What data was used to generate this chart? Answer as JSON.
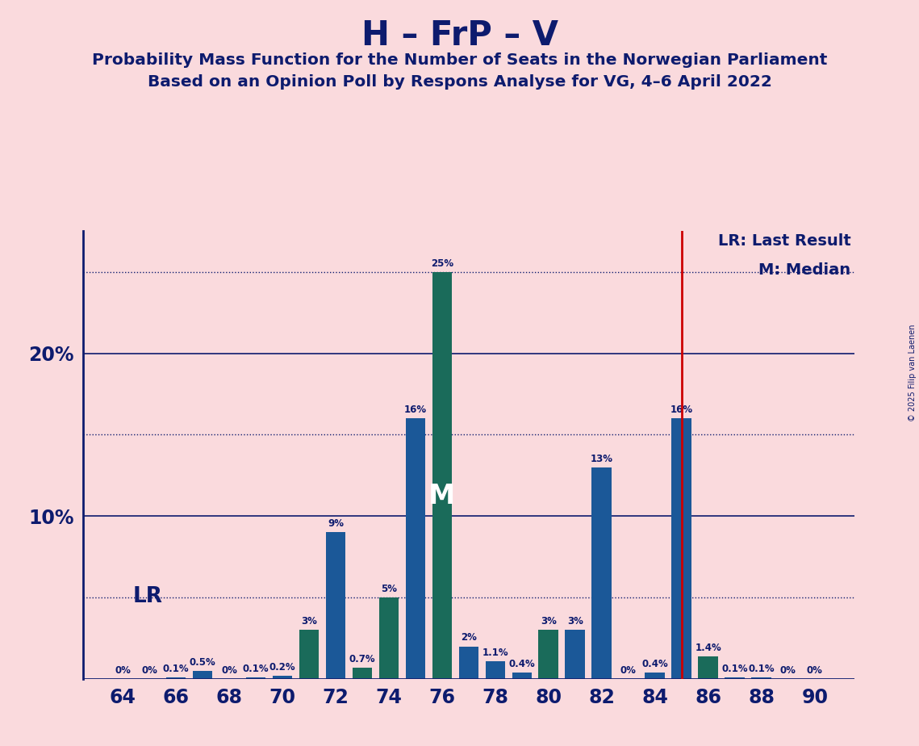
{
  "title": "H – FrP – V",
  "subtitle1": "Probability Mass Function for the Number of Seats in the Norwegian Parliament",
  "subtitle2": "Based on an Opinion Poll by Respons Analyse for VG, 4–6 April 2022",
  "copyright": "© 2025 Filip van Laenen",
  "legend_lr": "LR: Last Result",
  "legend_m": "M: Median",
  "lr_label": "LR",
  "median_label": "M",
  "background_color": "#FADADD",
  "bar_color_blue": "#1B5898",
  "bar_color_teal": "#1A6B5A",
  "axis_color": "#0D1B6E",
  "lr_line_color": "#CC0000",
  "last_result": 85,
  "median": 76,
  "seats": [
    64,
    65,
    66,
    67,
    68,
    69,
    70,
    71,
    72,
    73,
    74,
    75,
    76,
    77,
    78,
    79,
    80,
    81,
    82,
    83,
    84,
    85,
    86,
    87,
    88,
    89,
    90
  ],
  "values": [
    0.0,
    0.0,
    0.1,
    0.5,
    0.0,
    0.1,
    0.2,
    3.0,
    9.0,
    0.7,
    5.0,
    16.0,
    25.0,
    2.0,
    1.1,
    0.4,
    3.0,
    3.0,
    13.0,
    0.0,
    0.4,
    16.0,
    1.4,
    0.1,
    0.1,
    0.0,
    0.0
  ],
  "bar_colors": [
    "#1B5898",
    "#1B5898",
    "#1B5898",
    "#1B5898",
    "#1B5898",
    "#1B5898",
    "#1B5898",
    "#1A6B5A",
    "#1B5898",
    "#1A6B5A",
    "#1A6B5A",
    "#1B5898",
    "#1A6B5A",
    "#1B5898",
    "#1B5898",
    "#1B5898",
    "#1A6B5A",
    "#1B5898",
    "#1B5898",
    "#1B5898",
    "#1B5898",
    "#1B5898",
    "#1A6B5A",
    "#1B5898",
    "#1B5898",
    "#1B5898",
    "#1B5898"
  ],
  "bar_labels": [
    "0%",
    "0%",
    "0.1%",
    "0.5%",
    "0%",
    "0.1%",
    "0.2%",
    "3%",
    "9%",
    "0.7%",
    "5%",
    "16%",
    "25%",
    "2%",
    "1.1%",
    "0.4%",
    "3%",
    "3%",
    "13%",
    "0%",
    "0.4%",
    "16%",
    "1.4%",
    "0.1%",
    "0.1%",
    "0%",
    "0%"
  ],
  "xlim": [
    62.5,
    91.5
  ],
  "ylim": [
    0,
    27.5
  ],
  "xtick_positions": [
    64,
    66,
    68,
    70,
    72,
    74,
    76,
    78,
    80,
    82,
    84,
    86,
    88,
    90
  ],
  "solid_hlines": [
    10,
    20
  ],
  "dotted_hlines": [
    5,
    15,
    25
  ]
}
